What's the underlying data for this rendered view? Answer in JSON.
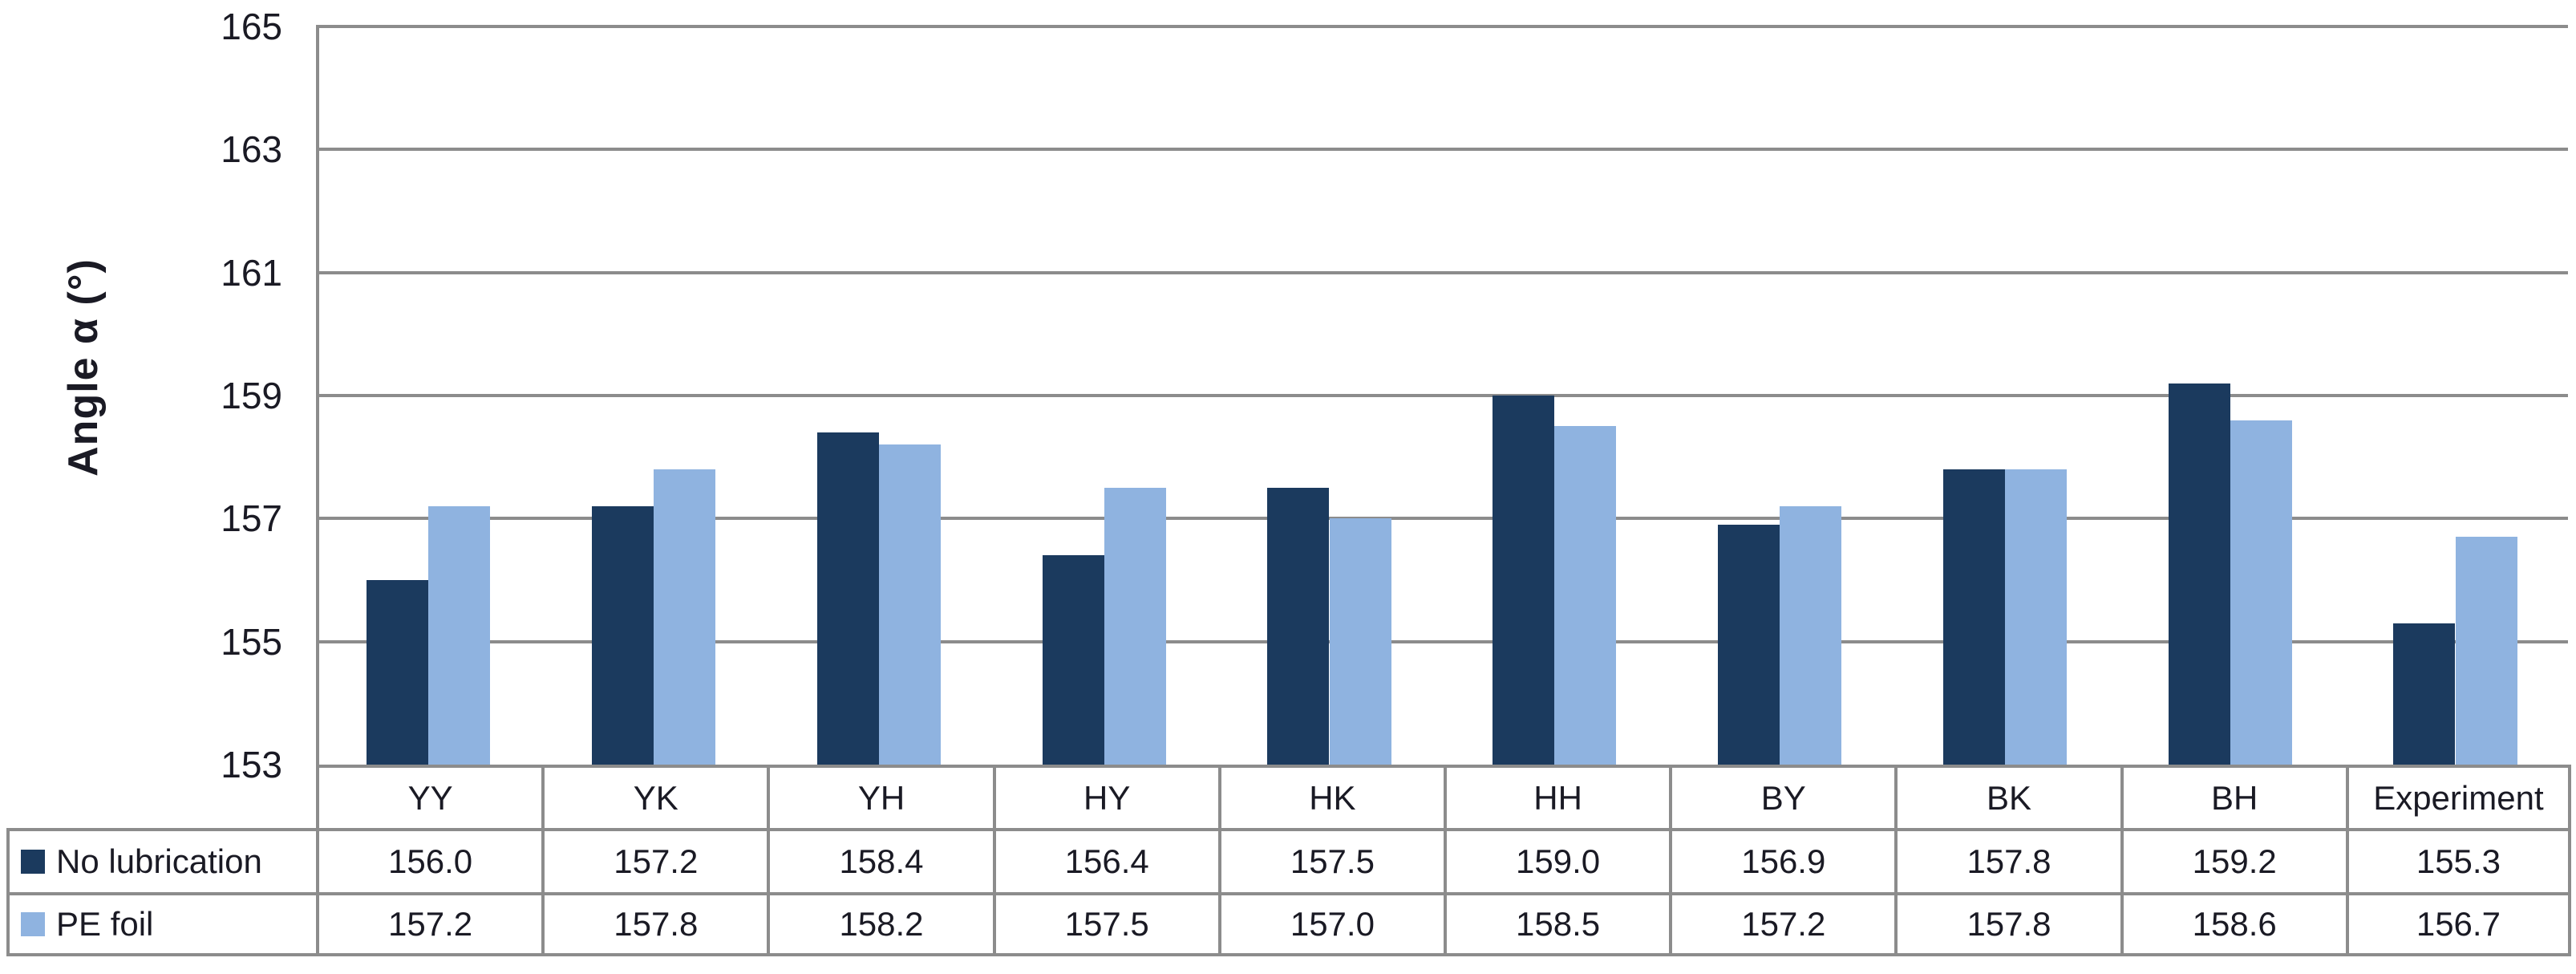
{
  "chart_data": {
    "type": "bar",
    "title": "",
    "xlabel": "",
    "ylabel": "Angle  α (°)",
    "categories": [
      "YY",
      "YK",
      "YH",
      "HY",
      "HK",
      "HH",
      "BY",
      "BK",
      "BH",
      "Experiment"
    ],
    "series": [
      {
        "name": "No lubrication",
        "color": "#1b3a5e",
        "values": [
          156.0,
          157.2,
          158.4,
          156.4,
          157.5,
          159.0,
          156.9,
          157.8,
          159.2,
          155.3
        ]
      },
      {
        "name": "PE foil",
        "color": "#8fb3e0",
        "values": [
          157.2,
          157.8,
          158.2,
          157.5,
          157.0,
          158.5,
          157.2,
          157.8,
          158.6,
          156.7
        ]
      }
    ],
    "ylim": [
      153,
      165
    ],
    "yticks": [
      153,
      155,
      157,
      159,
      161,
      163,
      165
    ],
    "grid": true,
    "value_decimals": 1,
    "legend_position": "table-left"
  },
  "colors": {
    "grid": "#8c8c8c",
    "text": "#1a1a24",
    "background": "#ffffff"
  }
}
